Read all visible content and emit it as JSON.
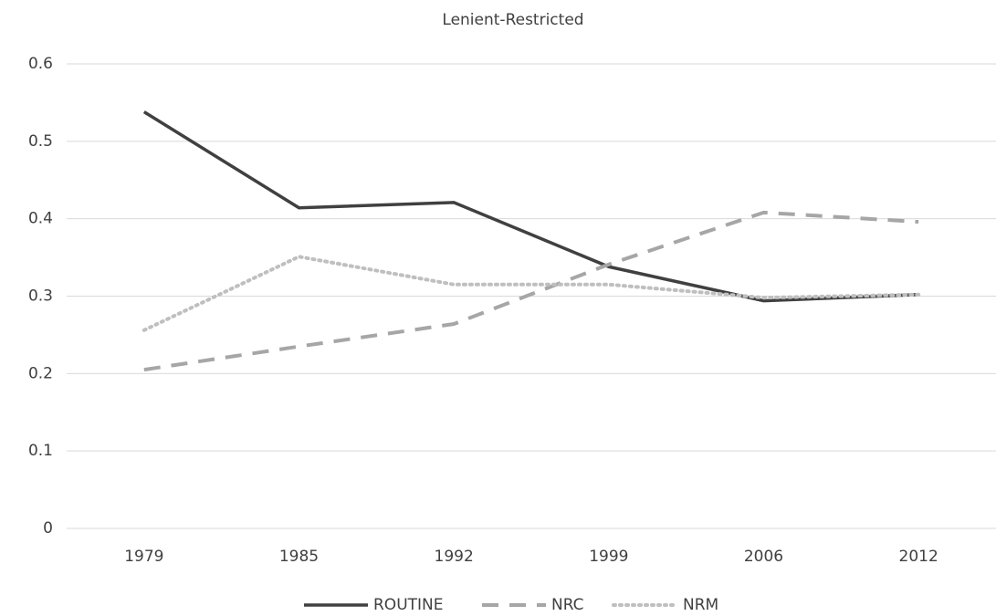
{
  "chart_data": {
    "type": "line",
    "title": "Lenient-Restricted",
    "categories": [
      "1979",
      "1985",
      "1992",
      "1999",
      "2006",
      "2012"
    ],
    "series": [
      {
        "name": "ROUTINE",
        "color": "#404040",
        "dash": "solid",
        "values": [
          0.538,
          0.414,
          0.421,
          0.338,
          0.294,
          0.302
        ]
      },
      {
        "name": "NRC",
        "color": "#a6a6a6",
        "dash": "dashed",
        "values": [
          0.205,
          0.235,
          0.264,
          0.341,
          0.408,
          0.396
        ]
      },
      {
        "name": "NRM",
        "color": "#bfbfbf",
        "dash": "dotted",
        "values": [
          0.256,
          0.351,
          0.315,
          0.315,
          0.298,
          0.302
        ]
      }
    ],
    "ylim": [
      0,
      0.6
    ],
    "yticks": [
      0,
      0.1,
      0.2,
      0.3,
      0.4,
      0.5,
      0.6
    ],
    "grid": true,
    "legend": "bottom"
  }
}
